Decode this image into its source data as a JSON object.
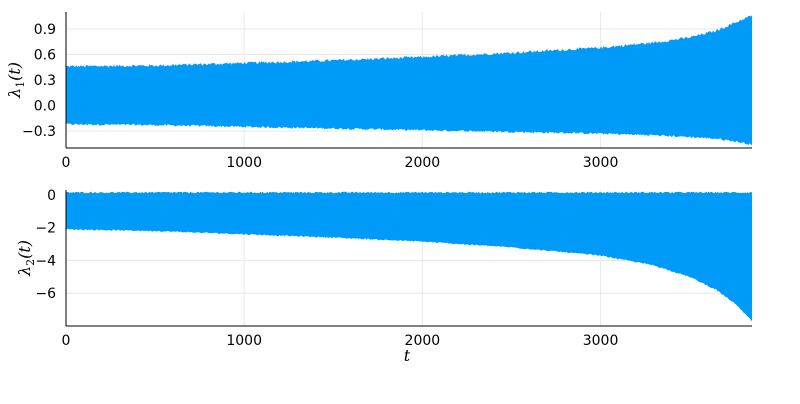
{
  "chart_data": [
    {
      "type": "area",
      "title": "",
      "xlabel": "",
      "ylabel": "λ1(t)",
      "ylabel_symbol": "λ",
      "ylabel_subscript": "1",
      "ylabel_arg": "(t)",
      "xlim": [
        0,
        3850
      ],
      "ylim": [
        -0.5,
        1.1
      ],
      "x_ticks": [
        0,
        1000,
        2000,
        3000
      ],
      "x_tick_labels": [
        "0",
        "1000",
        "2000",
        "3000"
      ],
      "y_ticks": [
        0.9,
        0.6,
        0.3,
        0.0,
        -0.3
      ],
      "y_tick_labels": [
        "0.9",
        "0.6",
        "0.3",
        "0.0",
        "−0.3"
      ],
      "grid": true,
      "legend": "none",
      "color": "#009af9",
      "series": [
        {
          "x": [
            0,
            500,
            1000,
            1500,
            2000,
            2500,
            3000,
            3300,
            3500,
            3650,
            3750,
            3850
          ],
          "upper": [
            0.46,
            0.47,
            0.5,
            0.53,
            0.57,
            0.62,
            0.68,
            0.74,
            0.8,
            0.88,
            0.97,
            1.06
          ],
          "lower": [
            -0.22,
            -0.23,
            -0.25,
            -0.27,
            -0.29,
            -0.31,
            -0.33,
            -0.35,
            -0.37,
            -0.39,
            -0.42,
            -0.46
          ]
        }
      ]
    },
    {
      "type": "area",
      "title": "",
      "xlabel": "t",
      "ylabel": "λ2(t)",
      "ylabel_symbol": "λ",
      "ylabel_subscript": "2",
      "ylabel_arg": "(t)",
      "xlim": [
        0,
        3850
      ],
      "ylim": [
        -8,
        0.3
      ],
      "x_ticks": [
        0,
        1000,
        2000,
        3000
      ],
      "x_tick_labels": [
        "0",
        "1000",
        "2000",
        "3000"
      ],
      "y_ticks": [
        0,
        -2,
        -4,
        -6
      ],
      "y_tick_labels": [
        "0",
        "−2",
        "−4",
        "−6"
      ],
      "grid": true,
      "legend": "none",
      "color": "#009af9",
      "series": [
        {
          "x": [
            0,
            500,
            1000,
            1500,
            2000,
            2500,
            3000,
            3300,
            3500,
            3650,
            3750,
            3850
          ],
          "upper": [
            0.15,
            0.15,
            0.15,
            0.15,
            0.15,
            0.15,
            0.15,
            0.15,
            0.15,
            0.15,
            0.15,
            0.15
          ],
          "lower": [
            -2.1,
            -2.2,
            -2.4,
            -2.6,
            -2.85,
            -3.2,
            -3.7,
            -4.3,
            -5.0,
            -5.8,
            -6.6,
            -7.7
          ]
        }
      ]
    }
  ]
}
